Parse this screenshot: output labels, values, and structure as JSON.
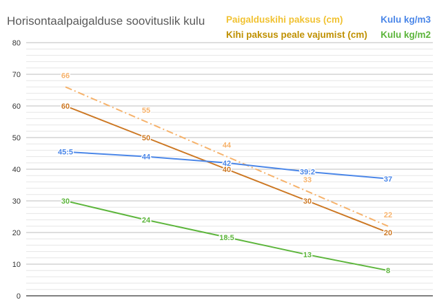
{
  "chart_data": {
    "type": "line",
    "title": "Horisontaalpaigalduse soovituslik kulu",
    "xlabel": "",
    "ylabel": "",
    "ylim": [
      0,
      80
    ],
    "yticks": [
      0,
      10,
      20,
      30,
      40,
      50,
      60,
      70,
      80
    ],
    "grid": true,
    "legend_position": "top",
    "x": [
      1,
      2,
      3,
      4,
      5
    ],
    "series": [
      {
        "name": "Paigalduskihi paksus (cm)",
        "color": "#f6b26b",
        "dash": true,
        "values": [
          66,
          55,
          44,
          33,
          22
        ],
        "labels": [
          "66",
          "55",
          "44",
          "33",
          "22"
        ]
      },
      {
        "name": "Kihi paksus peale vajumist (cm)",
        "color": "#cc7722",
        "dash": false,
        "values": [
          60,
          50,
          40,
          30,
          20
        ],
        "labels": [
          "60",
          "50",
          "40",
          "30",
          "20"
        ]
      },
      {
        "name": "Kulu kg/m3",
        "color": "#4a86e8",
        "dash": false,
        "values": [
          45.5,
          44,
          42,
          39.2,
          37
        ],
        "labels": [
          "45:5",
          "44",
          "42",
          "39:2",
          "37"
        ]
      },
      {
        "name": "Kulu kg/m2",
        "color": "#5cb53b",
        "dash": false,
        "values": [
          30,
          24,
          18.5,
          13,
          8
        ],
        "labels": [
          "30",
          "24",
          "18.5",
          "13",
          "8"
        ]
      }
    ]
  },
  "legend_colors": {
    "paigalduskiht": "#f1c232",
    "kihi_paksus": "#bf9000",
    "kulu_m3": "#4a86e8",
    "kulu_m2": "#5cb53b"
  }
}
